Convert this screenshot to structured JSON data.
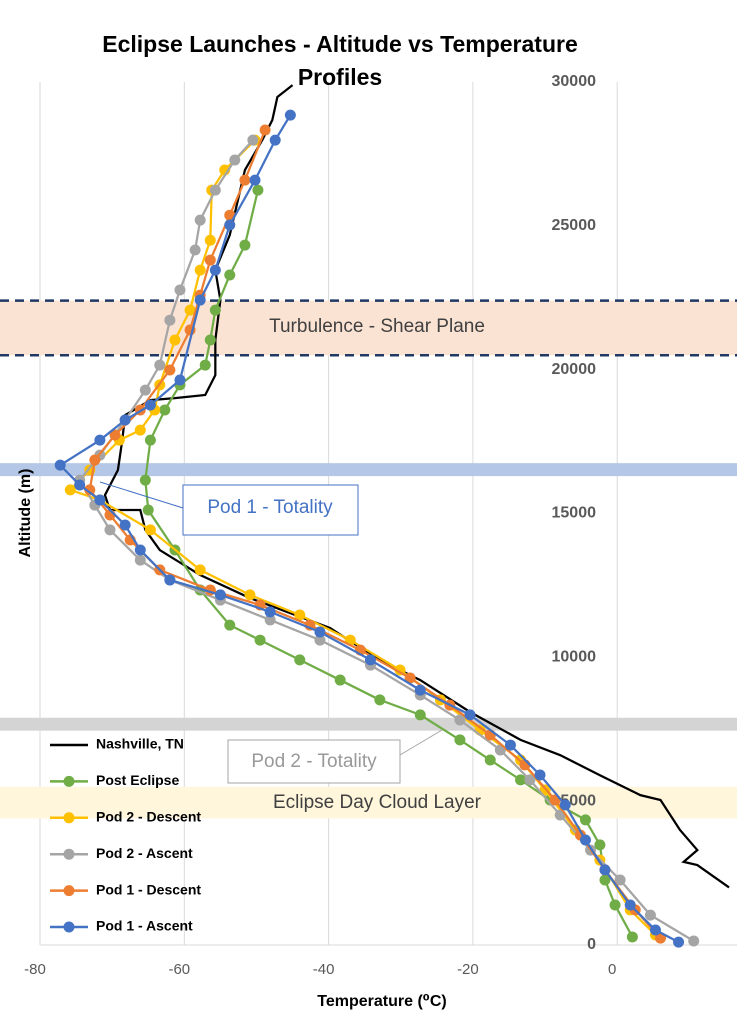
{
  "chart_data": {
    "type": "line",
    "title": "Eclipse Launches - Altitude vs Temperature Profiles",
    "x_label": "Temperature (⁰C)",
    "y_label": "Altitude (m)",
    "xlim": [
      -80,
      16.6
    ],
    "xticks": [
      -80,
      -60,
      -40,
      -20,
      0
    ],
    "ylim": [
      0,
      30000
    ],
    "yticks": [
      0,
      5000,
      10000,
      15000,
      20000,
      25000,
      30000
    ],
    "grid": "vertical",
    "legend": "lower left",
    "bands": [
      {
        "label": "Turbulence - Shear Plane",
        "range": [
          20500,
          22400
        ],
        "color": "#fbe3d4",
        "border": "dashed"
      },
      {
        "label": "Pod 1 - Totality",
        "range": [
          16300,
          16750
        ],
        "color": "#b4c7e7"
      },
      {
        "label": "Pod 2 - Totality",
        "range": [
          7450,
          7900
        ],
        "color": "#d4d4d4"
      },
      {
        "label": "Eclipse Day Cloud Layer",
        "range": [
          4400,
          5500
        ],
        "color": "#fff6dc"
      }
    ],
    "series": [
      {
        "name": "Nashville, TN",
        "color": "#000000",
        "markers": false,
        "x": [
          15.5,
          11.1,
          9.2,
          11.1,
          8.7,
          6,
          3.2,
          -2.4,
          -7.9,
          -13.4,
          -20.4,
          -27.3,
          -32.9,
          -39.8,
          -44.6,
          -50.9,
          -57.8,
          -63.4,
          -65.4,
          -66.1,
          -70.3,
          -71,
          -69.2,
          -68.6,
          -68.2,
          -64.7,
          -61.3,
          -57.1,
          -55.7,
          -55.7,
          -55,
          -55.7,
          -53.7,
          -51.6,
          -49.2,
          -47.8,
          -47.1,
          -45
        ],
        "values": [
          2000,
          2780,
          2890,
          3300,
          4000,
          5040,
          5210,
          5900,
          6600,
          7130,
          8100,
          9210,
          9900,
          11020,
          11470,
          12060,
          12860,
          13730,
          14430,
          15120,
          15120,
          15640,
          16510,
          17550,
          18420,
          18940,
          19010,
          19120,
          19810,
          21030,
          22420,
          23460,
          24680,
          26940,
          27980,
          28680,
          29480,
          29890
        ]
      },
      {
        "name": "Post Eclipse",
        "color": "#70ad47",
        "markers": true,
        "x": [
          2.1,
          -0.3,
          -1.7,
          -2.4,
          -4.4,
          -9.3,
          -13.4,
          -17.6,
          -21.8,
          -27.3,
          -32.9,
          -38.4,
          -44,
          -49.5,
          -53.7,
          -57.8,
          -61.3,
          -65,
          -65.4,
          -64.7,
          -62.7,
          -60.6,
          -57.1,
          -56.4,
          -55.7,
          -53.7,
          -51.6,
          -49.8
        ],
        "values": [
          280,
          1390,
          2260,
          3480,
          4350,
          5040,
          5740,
          6430,
          7130,
          8000,
          8520,
          9210,
          9910,
          10600,
          11120,
          12340,
          13730,
          15120,
          16160,
          17550,
          18600,
          19470,
          20160,
          21030,
          22070,
          23290,
          24330,
          26240
        ]
      },
      {
        "name": "Pod 2 - Descent",
        "color": "#ffc000",
        "markers": true,
        "x": [
          5.3,
          1.8,
          -2.4,
          -5.8,
          -10,
          -13.4,
          -19,
          -24.5,
          -30.1,
          -37,
          -44,
          -50.9,
          -57.8,
          -64.7,
          -71.7,
          -75.8,
          -73.1,
          -69,
          -66.1,
          -64.1,
          -63.4,
          -61.3,
          -59.2,
          -57.8,
          -56.4,
          -56.2,
          -54.4,
          -50.2
        ],
        "values": [
          350,
          1220,
          2950,
          4000,
          5390,
          6430,
          7470,
          8520,
          9560,
          10600,
          11470,
          12170,
          13040,
          14430,
          15470,
          15820,
          16510,
          17550,
          17900,
          18600,
          19470,
          21030,
          22070,
          23460,
          24500,
          26240,
          26940,
          27980
        ]
      },
      {
        "name": "Pod 2 - Ascent",
        "color": "#a5a5a5",
        "markers": true,
        "x": [
          10.6,
          4.6,
          0.4,
          -3.7,
          -7.9,
          -12.1,
          -16.2,
          -21.8,
          -27.3,
          -34.2,
          -41.2,
          -48.1,
          -55,
          -62,
          -66.1,
          -70.3,
          -72.4,
          -74.5,
          -71.7,
          -68.2,
          -65.4,
          -63.4,
          -62,
          -60.6,
          -58.5,
          -57.8,
          -55.7,
          -53,
          -50.5
        ],
        "values": [
          140,
          1040,
          2260,
          3300,
          4520,
          5740,
          6780,
          7820,
          8690,
          9730,
          10600,
          11300,
          11990,
          12690,
          13380,
          14430,
          15290,
          16160,
          17030,
          18250,
          19290,
          20160,
          21720,
          22770,
          24160,
          25200,
          26240,
          27290,
          27980
        ]
      },
      {
        "name": "Pod 1 - Descent",
        "color": "#ed7d31",
        "markers": true,
        "x": [
          6,
          2.5,
          -1.7,
          -5.1,
          -8.6,
          -12.8,
          -17.6,
          -23.2,
          -28.7,
          -35.6,
          -42.6,
          -49.5,
          -56.4,
          -63.4,
          -67.5,
          -70.3,
          -73.1,
          -72.4,
          -69.6,
          -66.1,
          -62,
          -59.2,
          -57.8,
          -56.4,
          -53.7,
          -51.6,
          -48.8
        ],
        "values": [
          240,
          1220,
          2610,
          3820,
          5040,
          6260,
          7300,
          8340,
          9280,
          10250,
          11120,
          11820,
          12340,
          13040,
          14080,
          14950,
          15820,
          16860,
          17730,
          18600,
          19990,
          21380,
          22590,
          23810,
          25370,
          26590,
          28330
        ]
      },
      {
        "name": "Pod 1 - Ascent",
        "color": "#4472c4",
        "markers": true,
        "x": [
          8.5,
          5.3,
          1.8,
          -1.7,
          -4.4,
          -7.2,
          -10.7,
          -14.8,
          -20.4,
          -27.3,
          -34.2,
          -41.2,
          -48.1,
          -55,
          -62,
          -66.1,
          -68.2,
          -71.7,
          -74.5,
          -77.2,
          -71.7,
          -68.2,
          -64.7,
          -60.6,
          -57.8,
          -55.7,
          -53.7,
          -50.2,
          -47.4,
          -45.3
        ],
        "values": [
          100,
          520,
          1390,
          2610,
          3650,
          4870,
          5910,
          6950,
          8000,
          8860,
          9910,
          10880,
          11580,
          12170,
          12690,
          13730,
          14600,
          15470,
          15990,
          16680,
          17550,
          18250,
          18770,
          19640,
          22420,
          23460,
          25030,
          26590,
          27980,
          28850
        ]
      }
    ]
  }
}
